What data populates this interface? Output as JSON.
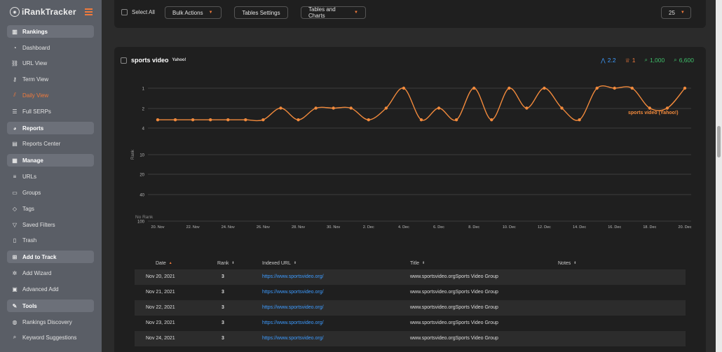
{
  "app": {
    "logo_prefix": "i",
    "logo_name": "RankTracker"
  },
  "sidebar": {
    "items": [
      {
        "label": "Rankings",
        "icon": "rankings-icon",
        "type": "section"
      },
      {
        "label": "Dashboard",
        "icon": "dashboard-icon"
      },
      {
        "label": "URL View",
        "icon": "link-icon"
      },
      {
        "label": "Term View",
        "icon": "key-icon"
      },
      {
        "label": "Daily View",
        "icon": "chart-line-icon",
        "active": true
      },
      {
        "label": "Full SERPs",
        "icon": "database-icon"
      },
      {
        "label": "Reports",
        "icon": "pie-chart-icon",
        "type": "section"
      },
      {
        "label": "Reports Center",
        "icon": "document-icon"
      },
      {
        "label": "Manage",
        "icon": "manage-icon",
        "type": "section"
      },
      {
        "label": "URLs",
        "icon": "list-icon"
      },
      {
        "label": "Groups",
        "icon": "folder-icon"
      },
      {
        "label": "Tags",
        "icon": "tag-icon"
      },
      {
        "label": "Saved Filters",
        "icon": "filter-icon"
      },
      {
        "label": "Trash",
        "icon": "trash-icon"
      },
      {
        "label": "Add to Track",
        "icon": "plus-square-icon",
        "type": "section"
      },
      {
        "label": "Add Wizard",
        "icon": "wand-icon"
      },
      {
        "label": "Advanced Add",
        "icon": "calendar-plus-icon"
      },
      {
        "label": "Tools",
        "icon": "tools-icon",
        "type": "section"
      },
      {
        "label": "Rankings Discovery",
        "icon": "globe-icon"
      },
      {
        "label": "Keyword Suggestions",
        "icon": "search-icon"
      }
    ]
  },
  "toolbar": {
    "select_all": "Select All",
    "bulk_actions": "Bulk Actions",
    "tables_settings": "Tables Settings",
    "tables_and_charts": "Tables and Charts",
    "page_size": "25"
  },
  "card": {
    "keyword": "sports video",
    "engine": "Yahoo!",
    "stats": [
      {
        "icon": "rank-avg-icon",
        "value": "2.2",
        "color": "#3d9bff"
      },
      {
        "icon": "trophy-icon",
        "value": "1",
        "color": "#f07a3c"
      },
      {
        "icon": "search-volume-icon",
        "value": "1,000",
        "color": "#3fbf6a"
      },
      {
        "icon": "search-results-icon",
        "value": "6,600",
        "color": "#3fbf6a"
      }
    ]
  },
  "chart_data": {
    "type": "line",
    "ylabel": "Rank",
    "y_ticks": [
      "1",
      "2",
      "4",
      "10",
      "20",
      "40",
      "100"
    ],
    "y_bottom_label": "No Rank",
    "x_tick_labels": [
      "20. Nov",
      "22. Nov",
      "24. Nov",
      "26. Nov",
      "28. Nov",
      "30. Nov",
      "2. Dec",
      "4. Dec",
      "6. Dec",
      "8. Dec",
      "10. Dec",
      "12. Dec",
      "14. Dec",
      "16. Dec",
      "18. Dec",
      "20. Dec"
    ],
    "x": [
      "20. Nov",
      "21. Nov",
      "22. Nov",
      "23. Nov",
      "24. Nov",
      "25. Nov",
      "26. Nov",
      "27. Nov",
      "28. Nov",
      "29. Nov",
      "30. Nov",
      "1. Dec",
      "2. Dec",
      "3. Dec",
      "4. Dec",
      "5. Dec",
      "6. Dec",
      "7. Dec",
      "8. Dec",
      "9. Dec",
      "10. Dec",
      "11. Dec",
      "12. Dec",
      "13. Dec",
      "14. Dec",
      "15. Dec",
      "16. Dec",
      "17. Dec",
      "18. Dec",
      "19. Dec",
      "20. Dec"
    ],
    "series": [
      {
        "name": "sports video (Yahoo!)",
        "color": "#f28a3c",
        "values": [
          3,
          3,
          3,
          3,
          3,
          3,
          3,
          2,
          3,
          2,
          2,
          2,
          3,
          2,
          1,
          3,
          2,
          3,
          1,
          3,
          1,
          2,
          1,
          2,
          3,
          1,
          1,
          1,
          2,
          2,
          1
        ]
      }
    ],
    "grid": true,
    "log_scale": true
  },
  "table": {
    "headers": {
      "date": "Date",
      "rank": "Rank",
      "url": "Indexed URL",
      "title": "Title",
      "notes": "Notes"
    },
    "rows": [
      {
        "date": "Nov 20, 2021",
        "rank": "3",
        "url": "https://www.sportsvideo.org/",
        "title": "www.sportsvideo.orgSports Video Group"
      },
      {
        "date": "Nov 21, 2021",
        "rank": "3",
        "url": "https://www.sportsvideo.org/",
        "title": "www.sportsvideo.orgSports Video Group"
      },
      {
        "date": "Nov 22, 2021",
        "rank": "3",
        "url": "https://www.sportsvideo.org/",
        "title": "www.sportsvideo.orgSports Video Group"
      },
      {
        "date": "Nov 23, 2021",
        "rank": "3",
        "url": "https://www.sportsvideo.org/",
        "title": "www.sportsvideo.orgSports Video Group"
      },
      {
        "date": "Nov 24, 2021",
        "rank": "3",
        "url": "https://www.sportsvideo.org/",
        "title": "www.sportsvideo.orgSports Video Group"
      }
    ]
  }
}
